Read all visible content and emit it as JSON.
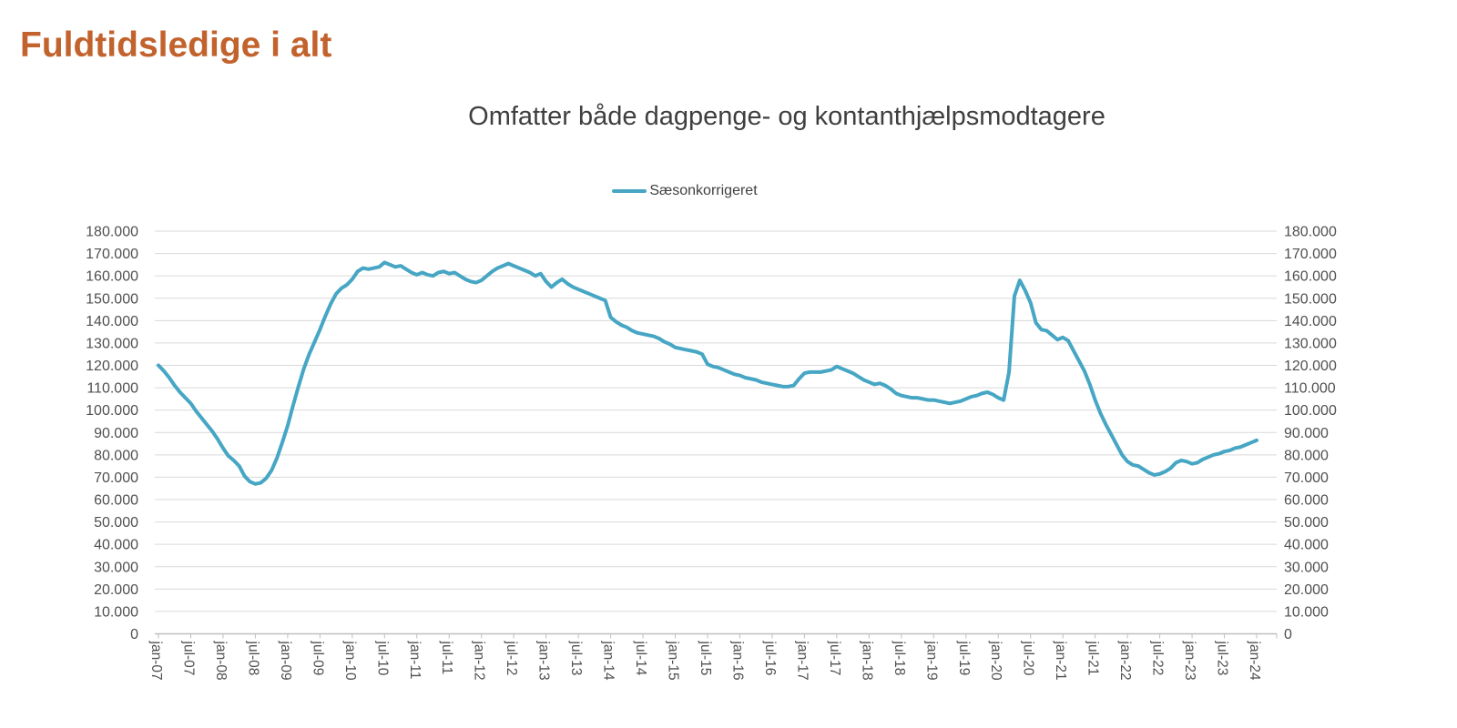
{
  "page": {
    "title": "Fuldtidsledige i alt"
  },
  "colors": {
    "title": "#C2622D",
    "line": "#46A6C4",
    "subtitle_text": "#3F3F3F",
    "tick_text": "#4F4F4F",
    "gridline": "#D9D9D9",
    "axis_line": "#BFBFBF"
  },
  "chart": {
    "subtitle": "Omfatter både dagpenge- og kontanthjælpsmodtagere",
    "legend": {
      "label": "Sæsonkorrigeret"
    }
  },
  "chart_data": {
    "type": "line",
    "title": "Omfatter både dagpenge- og kontanthjælpsmodtagere",
    "legend_entries": [
      "Sæsonkorrigeret"
    ],
    "legend_position": "top-center",
    "grid": "horizontal",
    "ylim": [
      0,
      180000
    ],
    "y_step": 10000,
    "y_tick_labels": [
      "180.000",
      "170.000",
      "160.000",
      "150.000",
      "140.000",
      "130.000",
      "120.000",
      "110.000",
      "100.000",
      "90.000",
      "80.000",
      "70.000",
      "60.000",
      "50.000",
      "40.000",
      "30.000",
      "20.000",
      "10.000",
      "0"
    ],
    "y_axis_sides": [
      "left",
      "right"
    ],
    "x_tick_labels": [
      "jan-07",
      "jul-07",
      "jan-08",
      "jul-08",
      "jan-09",
      "jul-09",
      "jan-10",
      "jul-10",
      "jan-11",
      "jul-11",
      "jan-12",
      "jul-12",
      "jan-13",
      "jul-13",
      "jan-14",
      "jul-14",
      "jan-15",
      "jul-15",
      "jan-16",
      "jul-16",
      "jan-17",
      "jul-17",
      "jan-18",
      "jul-18",
      "jan-19",
      "jul-19",
      "jan-20",
      "jul-20",
      "jan-21",
      "jul-21",
      "jan-22",
      "jul-22",
      "jan-23",
      "jul-23",
      "jan-24"
    ],
    "series": [
      {
        "name": "Sæsonkorrigeret",
        "frequency": "monthly",
        "start": "jan-07",
        "end": "jan-24",
        "values": [
          120000,
          117500,
          114500,
          111000,
          108000,
          105500,
          103000,
          99500,
          96500,
          93500,
          90500,
          87000,
          83000,
          79500,
          77500,
          75000,
          70500,
          68000,
          67000,
          67500,
          69500,
          73000,
          78500,
          85500,
          93000,
          102000,
          110500,
          118500,
          125000,
          130500,
          136000,
          142000,
          147500,
          152000,
          154500,
          156000,
          158500,
          162000,
          163500,
          163000,
          163500,
          164000,
          166000,
          165000,
          164000,
          164500,
          163000,
          161500,
          160500,
          161500,
          160500,
          160000,
          161500,
          162000,
          161000,
          161500,
          160000,
          158500,
          157500,
          157000,
          158000,
          160000,
          162000,
          163500,
          164500,
          165500,
          164500,
          163500,
          162500,
          161500,
          160000,
          161000,
          157500,
          155000,
          157000,
          158500,
          156500,
          155000,
          154000,
          153000,
          152000,
          151000,
          150000,
          149000,
          141500,
          139500,
          138000,
          137000,
          135500,
          134500,
          134000,
          133500,
          133000,
          132000,
          130500,
          129500,
          128000,
          127500,
          127000,
          126500,
          126000,
          125000,
          120500,
          119500,
          119000,
          118000,
          117000,
          116000,
          115500,
          114500,
          114000,
          113500,
          112500,
          112000,
          111500,
          111000,
          110500,
          110500,
          111000,
          114000,
          116500,
          117000,
          117000,
          117000,
          117500,
          118000,
          119500,
          118500,
          117500,
          116500,
          115000,
          113500,
          112500,
          111500,
          112000,
          111000,
          109500,
          107500,
          106500,
          106000,
          105500,
          105500,
          105000,
          104500,
          104500,
          104000,
          103500,
          103000,
          103500,
          104000,
          105000,
          106000,
          106500,
          107500,
          108000,
          107000,
          105500,
          104500,
          117000,
          151000,
          158000,
          153500,
          148000,
          139000,
          136000,
          135500,
          133500,
          131500,
          132500,
          131000,
          126500,
          122000,
          117500,
          111500,
          104500,
          98500,
          93500,
          89000,
          84500,
          80000,
          77000,
          75500,
          75000,
          73500,
          72000,
          71000,
          71500,
          72500,
          74000,
          76500,
          77500,
          77000,
          76000,
          76500,
          78000,
          79000,
          80000,
          80500,
          81500,
          82000,
          83000,
          83500,
          84500,
          85500,
          86500
        ]
      }
    ]
  }
}
